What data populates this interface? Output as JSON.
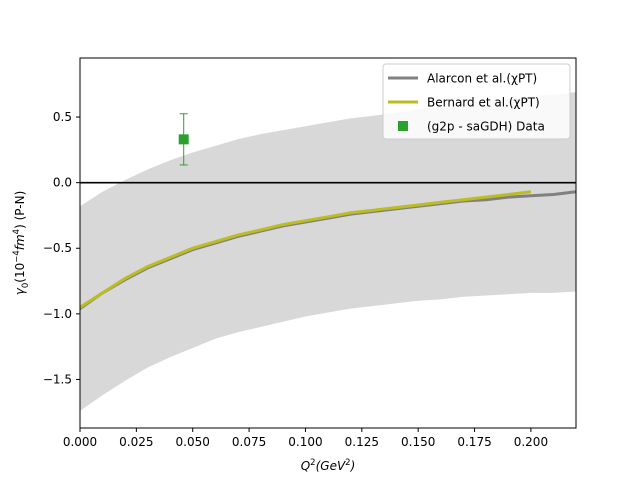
{
  "chart_data": {
    "type": "line",
    "xlabel_main": "Q",
    "xlabel_sup1": "2",
    "xlabel_open": "(GeV",
    "xlabel_sup2": "2",
    "xlabel_close": ")",
    "ylabel_main": "γ",
    "ylabel_sub": "0",
    "ylabel_open": "(10",
    "ylabel_sup1": "−4",
    "ylabel_fm": "fm",
    "ylabel_sup2": "4",
    "ylabel_close": ") (P-N)",
    "xlim": [
      0.0,
      0.22
    ],
    "ylim": [
      -1.87,
      0.95
    ],
    "x_ticks": [
      {
        "value": 0.0,
        "label": "0.000"
      },
      {
        "value": 0.025,
        "label": "0.025"
      },
      {
        "value": 0.05,
        "label": "0.050"
      },
      {
        "value": 0.075,
        "label": "0.075"
      },
      {
        "value": 0.1,
        "label": "0.100"
      },
      {
        "value": 0.125,
        "label": "0.125"
      },
      {
        "value": 0.15,
        "label": "0.150"
      },
      {
        "value": 0.175,
        "label": "0.175"
      },
      {
        "value": 0.2,
        "label": "0.200"
      }
    ],
    "y_ticks": [
      {
        "value": 0.5,
        "label": "0.5"
      },
      {
        "value": 0.0,
        "label": "0.0"
      },
      {
        "value": -0.5,
        "label": "−0.5"
      },
      {
        "value": -1.0,
        "label": "−1.0"
      },
      {
        "value": -1.5,
        "label": "−1.5"
      }
    ],
    "zero_line": 0.0,
    "band": {
      "name": "Alarcon et al.(χPT) uncertainty",
      "color": "#d8d8d8",
      "x": [
        0.0,
        0.01,
        0.02,
        0.03,
        0.04,
        0.05,
        0.06,
        0.07,
        0.08,
        0.09,
        0.1,
        0.11,
        0.12,
        0.13,
        0.14,
        0.15,
        0.16,
        0.17,
        0.18,
        0.19,
        0.2,
        0.21,
        0.22
      ],
      "upper": [
        -0.18,
        -0.07,
        0.02,
        0.1,
        0.17,
        0.23,
        0.28,
        0.33,
        0.37,
        0.4,
        0.43,
        0.46,
        0.49,
        0.51,
        0.53,
        0.56,
        0.58,
        0.6,
        0.62,
        0.64,
        0.66,
        0.67,
        0.69
      ],
      "lower": [
        -1.74,
        -1.62,
        -1.51,
        -1.41,
        -1.33,
        -1.26,
        -1.19,
        -1.14,
        -1.1,
        -1.06,
        -1.02,
        -0.99,
        -0.96,
        -0.94,
        -0.92,
        -0.9,
        -0.89,
        -0.87,
        -0.86,
        -0.85,
        -0.84,
        -0.84,
        -0.83
      ]
    },
    "series": [
      {
        "name": "Alarcon et al.(χPT)",
        "color": "#808080",
        "x": [
          0.0,
          0.01,
          0.02,
          0.03,
          0.04,
          0.05,
          0.06,
          0.07,
          0.08,
          0.09,
          0.1,
          0.11,
          0.12,
          0.13,
          0.14,
          0.15,
          0.16,
          0.17,
          0.18,
          0.19,
          0.2,
          0.21,
          0.22
        ],
        "y": [
          -0.96,
          -0.84,
          -0.74,
          -0.65,
          -0.58,
          -0.51,
          -0.46,
          -0.41,
          -0.37,
          -0.33,
          -0.3,
          -0.27,
          -0.24,
          -0.22,
          -0.2,
          -0.18,
          -0.16,
          -0.14,
          -0.13,
          -0.11,
          -0.1,
          -0.09,
          -0.07
        ]
      },
      {
        "name": "Bernard et al.(χPT)",
        "color": "#bcbd22",
        "x": [
          0.0,
          0.01,
          0.02,
          0.03,
          0.04,
          0.05,
          0.06,
          0.07,
          0.08,
          0.09,
          0.1,
          0.11,
          0.12,
          0.13,
          0.14,
          0.15,
          0.16,
          0.17,
          0.18,
          0.19,
          0.2
        ],
        "y": [
          -0.95,
          -0.84,
          -0.73,
          -0.64,
          -0.57,
          -0.5,
          -0.45,
          -0.4,
          -0.36,
          -0.32,
          -0.29,
          -0.26,
          -0.23,
          -0.21,
          -0.19,
          -0.17,
          -0.15,
          -0.13,
          -0.11,
          -0.09,
          -0.07
        ]
      }
    ],
    "data_points": {
      "name": "(g2p - saGDH) Data",
      "color": "#2ca02c",
      "x": [
        0.046
      ],
      "y": [
        0.33
      ],
      "err": [
        0.195
      ]
    },
    "legend": {
      "placement": "top-right",
      "entries": [
        "Alarcon et al.(χPT)",
        "Bernard et al.(χPT)",
        "(g2p - saGDH) Data"
      ]
    },
    "grid": false
  }
}
